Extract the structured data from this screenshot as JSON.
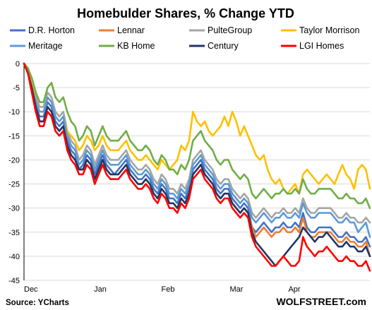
{
  "chart_data": {
    "type": "line",
    "title": "Homebulder Shares, % Change YTD",
    "source": "Source: YCharts",
    "brand": "WOLFSTREET.com",
    "xlabel": "",
    "ylabel": "",
    "ylim": [
      -45,
      0
    ],
    "yticks": [
      "0",
      "-5",
      "-10",
      "-15",
      "-20",
      "-25",
      "-30",
      "-35",
      "-40",
      "-45"
    ],
    "xticks": [
      "Dec",
      "Jan",
      "Feb",
      "Mar",
      "Apr"
    ],
    "grid": true,
    "legend_position": "top",
    "series": [
      {
        "name": "D.R. Horton",
        "color": "#4472c4",
        "values": [
          0,
          -2,
          -5,
          -9,
          -11,
          -11,
          -8,
          -9,
          -12,
          -13,
          -12,
          -16,
          -18,
          -19,
          -22,
          -21,
          -19,
          -20,
          -23,
          -21,
          -19,
          -21,
          -22,
          -23,
          -22,
          -21,
          -20,
          -22,
          -23,
          -24,
          -24,
          -23,
          -24,
          -26,
          -27,
          -25,
          -26,
          -28,
          -28,
          -29,
          -27,
          -28,
          -26,
          -22,
          -21,
          -20,
          -22,
          -23,
          -24,
          -26,
          -27,
          -26,
          -26,
          -28,
          -29,
          -30,
          -29,
          -30,
          -34,
          -35,
          -34,
          -33,
          -34,
          -35,
          -34,
          -34,
          -33,
          -34,
          -34,
          -33,
          -34,
          -31,
          -34,
          -35,
          -35,
          -34,
          -34,
          -34,
          -34,
          -35,
          -36,
          -36,
          -35,
          -36,
          -36,
          -37,
          -37,
          -36,
          -38
        ]
      },
      {
        "name": "Lennar",
        "color": "#ed7d31",
        "values": [
          0,
          -2,
          -5,
          -9,
          -12,
          -12,
          -9,
          -10,
          -13,
          -14,
          -13,
          -17,
          -19,
          -20,
          -22,
          -22,
          -20,
          -21,
          -24,
          -22,
          -20,
          -22,
          -23,
          -23,
          -23,
          -22,
          -21,
          -23,
          -24,
          -25,
          -25,
          -24,
          -25,
          -27,
          -28,
          -26,
          -27,
          -29,
          -29,
          -30,
          -28,
          -29,
          -27,
          -23,
          -22,
          -21,
          -23,
          -24,
          -25,
          -27,
          -28,
          -27,
          -27,
          -29,
          -30,
          -31,
          -30,
          -31,
          -34,
          -36,
          -35,
          -34,
          -35,
          -36,
          -35,
          -35,
          -34,
          -35,
          -35,
          -34,
          -35,
          -32,
          -35,
          -36,
          -36,
          -35,
          -35,
          -35,
          -35,
          -36,
          -37,
          -37,
          -36,
          -37,
          -37,
          -38,
          -38,
          -37,
          -40
        ]
      },
      {
        "name": "PulteGroup",
        "color": "#a5a5a5",
        "values": [
          0,
          -1,
          -4,
          -7,
          -9,
          -9,
          -6,
          -7,
          -10,
          -11,
          -10,
          -14,
          -16,
          -17,
          -20,
          -19,
          -17,
          -18,
          -21,
          -19,
          -17,
          -19,
          -20,
          -20,
          -20,
          -19,
          -18,
          -20,
          -21,
          -22,
          -22,
          -21,
          -22,
          -24,
          -25,
          -23,
          -24,
          -26,
          -26,
          -27,
          -25,
          -26,
          -24,
          -20,
          -19,
          -18,
          -20,
          -21,
          -22,
          -24,
          -25,
          -24,
          -24,
          -26,
          -27,
          -28,
          -27,
          -28,
          -31,
          -32,
          -31,
          -30,
          -31,
          -32,
          -31,
          -31,
          -30,
          -31,
          -31,
          -30,
          -31,
          -28,
          -30,
          -31,
          -31,
          -30,
          -30,
          -30,
          -30,
          -31,
          -32,
          -32,
          -31,
          -32,
          -32,
          -33,
          -33,
          -32,
          -33
        ]
      },
      {
        "name": "Taylor Morrison",
        "color": "#ffc000",
        "values": [
          0,
          -2,
          -4,
          -8,
          -10,
          -10,
          -7,
          -8,
          -11,
          -12,
          -11,
          -14,
          -15,
          -16,
          -18,
          -17,
          -15,
          -16,
          -18,
          -17,
          -15,
          -17,
          -18,
          -18,
          -18,
          -17,
          -16,
          -18,
          -19,
          -20,
          -20,
          -19,
          -20,
          -21,
          -22,
          -20,
          -21,
          -22,
          -21,
          -20,
          -17,
          -18,
          -16,
          -10,
          -12,
          -13,
          -12,
          -14,
          -15,
          -14,
          -13,
          -11,
          -13,
          -10,
          -12,
          -15,
          -13,
          -15,
          -17,
          -19,
          -20,
          -19,
          -22,
          -24,
          -25,
          -24,
          -26,
          -27,
          -26,
          -25,
          -27,
          -23,
          -22,
          -23,
          -24,
          -25,
          -24,
          -23,
          -24,
          -25,
          -23,
          -21,
          -23,
          -24,
          -26,
          -22,
          -21,
          -22,
          -26
        ]
      },
      {
        "name": "Meritage",
        "color": "#5b9bd5",
        "values": [
          0,
          -2,
          -5,
          -8,
          -10,
          -10,
          -7,
          -8,
          -11,
          -12,
          -11,
          -15,
          -17,
          -18,
          -21,
          -20,
          -18,
          -19,
          -22,
          -20,
          -18,
          -20,
          -21,
          -21,
          -21,
          -20,
          -19,
          -21,
          -22,
          -23,
          -23,
          -22,
          -23,
          -25,
          -26,
          -24,
          -25,
          -27,
          -27,
          -28,
          -26,
          -27,
          -25,
          -21,
          -20,
          -19,
          -21,
          -22,
          -23,
          -25,
          -26,
          -25,
          -25,
          -27,
          -28,
          -29,
          -28,
          -29,
          -32,
          -33,
          -32,
          -31,
          -32,
          -33,
          -32,
          -32,
          -31,
          -32,
          -32,
          -31,
          -32,
          -29,
          -31,
          -32,
          -32,
          -31,
          -31,
          -31,
          -31,
          -32,
          -33,
          -33,
          -32,
          -33,
          -33,
          -35,
          -34,
          -33,
          -36
        ]
      },
      {
        "name": "KB Home",
        "color": "#70ad47",
        "values": [
          0,
          -1,
          -3,
          -6,
          -8,
          -8,
          -5,
          -4,
          -7,
          -8,
          -7,
          -10,
          -12,
          -13,
          -16,
          -15,
          -13,
          -14,
          -17,
          -15,
          -13,
          -15,
          -16,
          -16,
          -16,
          -15,
          -14,
          -16,
          -17,
          -18,
          -18,
          -17,
          -18,
          -20,
          -21,
          -19,
          -20,
          -22,
          -22,
          -23,
          -21,
          -22,
          -20,
          -16,
          -15,
          -14,
          -16,
          -17,
          -18,
          -20,
          -21,
          -20,
          -20,
          -22,
          -23,
          -24,
          -23,
          -24,
          -27,
          -28,
          -27,
          -26,
          -27,
          -28,
          -27,
          -27,
          -26,
          -27,
          -27,
          -26,
          -27,
          -24,
          -26,
          -27,
          -27,
          -26,
          -26,
          -26,
          -26,
          -27,
          -28,
          -28,
          -27,
          -28,
          -28,
          -29,
          -29,
          -28,
          -30
        ]
      },
      {
        "name": "Century",
        "color": "#203864",
        "values": [
          0,
          -2,
          -5,
          -9,
          -12,
          -12,
          -9,
          -10,
          -13,
          -14,
          -13,
          -17,
          -19,
          -20,
          -22,
          -22,
          -20,
          -21,
          -24,
          -22,
          -20,
          -22,
          -23,
          -23,
          -23,
          -22,
          -21,
          -23,
          -24,
          -25,
          -25,
          -24,
          -25,
          -27,
          -28,
          -26,
          -27,
          -29,
          -29,
          -30,
          -28,
          -29,
          -27,
          -23,
          -22,
          -21,
          -23,
          -24,
          -25,
          -27,
          -28,
          -27,
          -27,
          -29,
          -30,
          -31,
          -30,
          -31,
          -35,
          -37,
          -38,
          -39,
          -40,
          -41,
          -42,
          -41,
          -40,
          -39,
          -38,
          -37,
          -36,
          -34,
          -35,
          -36,
          -37,
          -36,
          -36,
          -35,
          -36,
          -37,
          -38,
          -38,
          -37,
          -38,
          -38,
          -39,
          -39,
          -38,
          -40
        ]
      },
      {
        "name": "LGI Homes",
        "color": "#ff0000",
        "values": [
          0,
          -2,
          -6,
          -10,
          -13,
          -13,
          -10,
          -11,
          -14,
          -15,
          -14,
          -18,
          -20,
          -21,
          -23,
          -23,
          -21,
          -22,
          -25,
          -23,
          -21,
          -23,
          -24,
          -24,
          -24,
          -23,
          -22,
          -24,
          -25,
          -26,
          -26,
          -25,
          -26,
          -28,
          -29,
          -27,
          -28,
          -30,
          -30,
          -31,
          -29,
          -30,
          -28,
          -24,
          -23,
          -22,
          -24,
          -25,
          -26,
          -28,
          -29,
          -28,
          -28,
          -30,
          -31,
          -32,
          -31,
          -32,
          -36,
          -38,
          -39,
          -40,
          -41,
          -42,
          -42,
          -41,
          -40,
          -41,
          -42,
          -42,
          -41,
          -36,
          -38,
          -39,
          -40,
          -39,
          -39,
          -38,
          -39,
          -40,
          -41,
          -41,
          -40,
          -41,
          -41,
          -42,
          -42,
          -41,
          -43
        ]
      }
    ]
  }
}
